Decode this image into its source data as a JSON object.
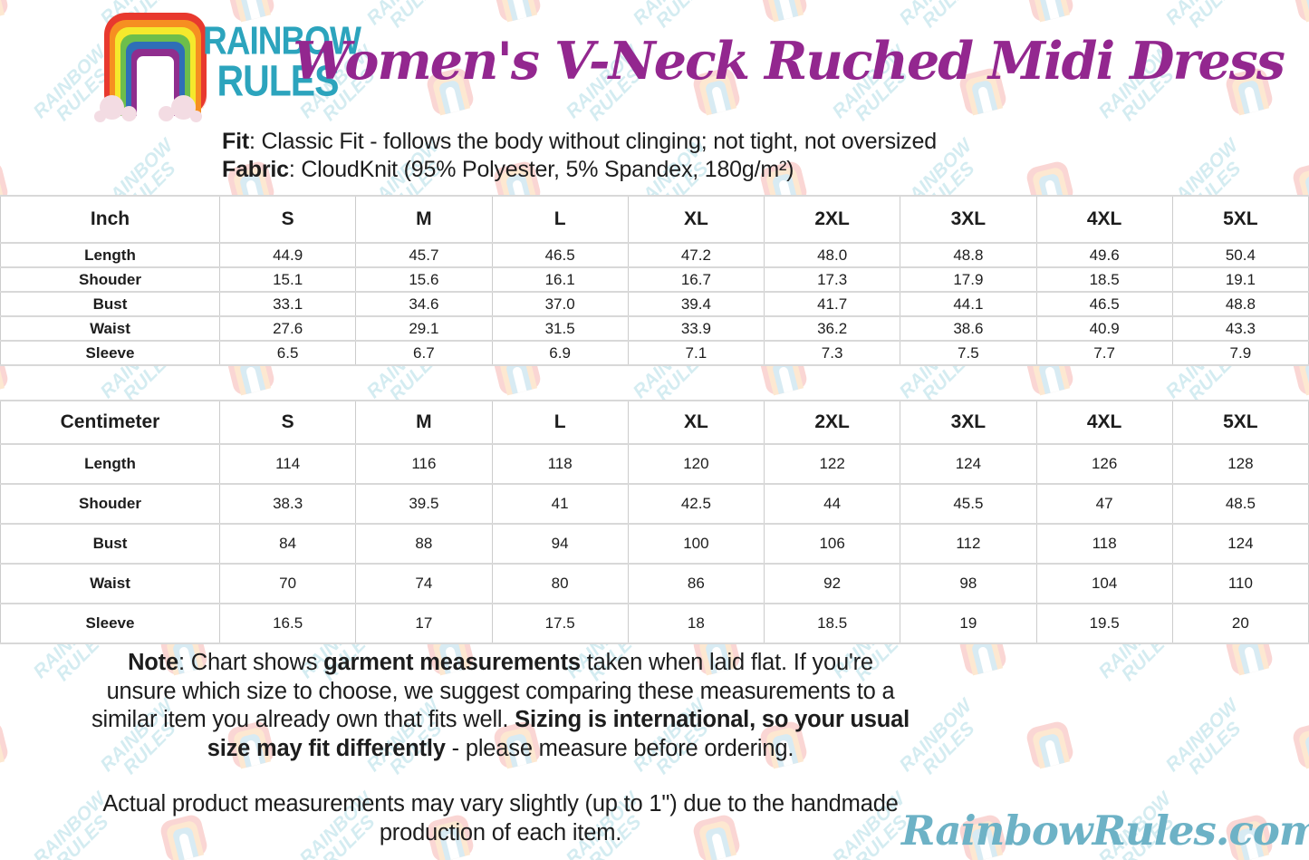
{
  "brand": {
    "line1": "RAINBOW",
    "line2": "RULES"
  },
  "title": "Women's V-Neck Ruched Midi Dress",
  "description": {
    "fit_line": [
      {
        "text": "Fit",
        "bold": true
      },
      {
        "text": ": Classic Fit - follows the body without clinging; not tight, not oversized",
        "bold": false
      }
    ],
    "fabric_line": [
      {
        "text": "Fabric",
        "bold": true
      },
      {
        "text": ": CloudKnit (95% Polyester, 5% Spandex, 180g/m²)",
        "bold": false
      }
    ]
  },
  "tables": [
    {
      "unit_header": "Inch",
      "sizes": [
        "S",
        "M",
        "L",
        "XL",
        "2XL",
        "3XL",
        "4XL",
        "5XL"
      ],
      "rows": [
        {
          "label": "Length",
          "values": [
            "44.9",
            "45.7",
            "46.5",
            "47.2",
            "48.0",
            "48.8",
            "49.6",
            "50.4"
          ]
        },
        {
          "label": "Shouder",
          "values": [
            "15.1",
            "15.6",
            "16.1",
            "16.7",
            "17.3",
            "17.9",
            "18.5",
            "19.1"
          ]
        },
        {
          "label": "Bust",
          "values": [
            "33.1",
            "34.6",
            "37.0",
            "39.4",
            "41.7",
            "44.1",
            "46.5",
            "48.8"
          ]
        },
        {
          "label": "Waist",
          "values": [
            "27.6",
            "29.1",
            "31.5",
            "33.9",
            "36.2",
            "38.6",
            "40.9",
            "43.3"
          ]
        },
        {
          "label": "Sleeve",
          "values": [
            "6.5",
            "6.7",
            "6.9",
            "7.1",
            "7.3",
            "7.5",
            "7.7",
            "7.9"
          ]
        }
      ]
    },
    {
      "unit_header": "Centimeter",
      "sizes": [
        "S",
        "M",
        "L",
        "XL",
        "2XL",
        "3XL",
        "4XL",
        "5XL"
      ],
      "rows": [
        {
          "label": "Length",
          "values": [
            "114",
            "116",
            "118",
            "120",
            "122",
            "124",
            "126",
            "128"
          ]
        },
        {
          "label": "Shouder",
          "values": [
            "38.3",
            "39.5",
            "41",
            "42.5",
            "44",
            "45.5",
            "47",
            "48.5"
          ]
        },
        {
          "label": "Bust",
          "values": [
            "84",
            "88",
            "94",
            "100",
            "106",
            "112",
            "118",
            "124"
          ]
        },
        {
          "label": "Waist",
          "values": [
            "70",
            "74",
            "80",
            "86",
            "92",
            "98",
            "104",
            "110"
          ]
        },
        {
          "label": "Sleeve",
          "values": [
            "16.5",
            "17",
            "17.5",
            "18",
            "18.5",
            "19",
            "19.5",
            "20"
          ]
        }
      ]
    }
  ],
  "notes": {
    "paragraph1": [
      {
        "text": "Note",
        "bold": true
      },
      {
        "text": ": Chart shows ",
        "bold": false
      },
      {
        "text": "garment measurements",
        "bold": true
      },
      {
        "text": " taken when laid flat. If you're unsure which size to choose, we suggest comparing these measurements to a similar item you already own that fits well. ",
        "bold": false
      },
      {
        "text": "Sizing is international, so your usual size may fit differently",
        "bold": true
      },
      {
        "text": " - please measure before ordering.",
        "bold": false
      }
    ],
    "paragraph2": [
      {
        "text": "Actual product measurements may vary slightly (up to 1\") due to the handmade production of each item.",
        "bold": false
      }
    ]
  },
  "footer": {
    "website": "RainbowRules.com"
  },
  "colors": {
    "brand_teal": "#2ca4bd",
    "title_purple": "#93278f",
    "site_teal": "#6db2c6",
    "table_border": "#cccccc",
    "rainbow": [
      "#e8392e",
      "#f68f21",
      "#f5e92c",
      "#6dbe4b",
      "#2f6fb7",
      "#8f2e8e"
    ],
    "cloud_pink": "#f3dce3"
  }
}
